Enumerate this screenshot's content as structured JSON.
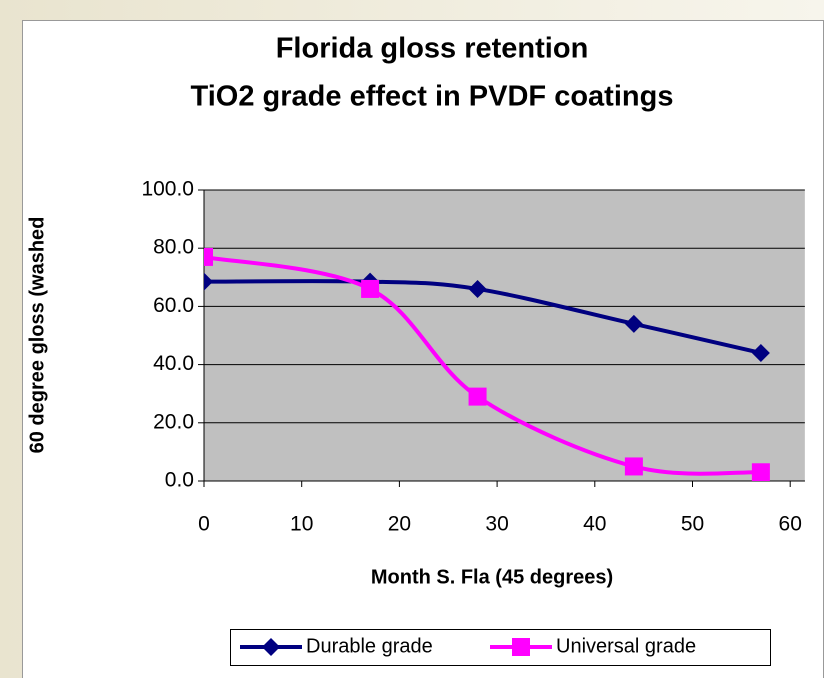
{
  "chart_data": {
    "type": "line",
    "title": [
      "Florida gloss retention",
      "TiO2 grade effect in PVDF coatings"
    ],
    "x_label": "Month S. Fla (45 degrees)",
    "y_label": "60 degree gloss (washed",
    "x": [
      0,
      17,
      28,
      44,
      57
    ],
    "series": [
      {
        "name": "Durable grade",
        "color": "#000080",
        "marker": "diamond",
        "values": [
          68.5,
          68.5,
          66,
          54,
          44
        ]
      },
      {
        "name": "Universal grade",
        "color": "#ff00ff",
        "marker": "square",
        "values": [
          77,
          66,
          29,
          5,
          3
        ]
      }
    ],
    "xlim": [
      0,
      61.5
    ],
    "xticks": [
      0,
      10,
      20,
      30,
      40,
      50,
      60
    ],
    "ylim": [
      0,
      100
    ],
    "yticks": [
      {
        "value": 0,
        "label": "0.0"
      },
      {
        "value": 20,
        "label": "20.0"
      },
      {
        "value": 40,
        "label": "40.0"
      },
      {
        "value": 60,
        "label": "60.0"
      },
      {
        "value": 80,
        "label": "80.0"
      },
      {
        "value": 100,
        "label": "100.0"
      }
    ],
    "grid": true,
    "plot_background": "#c0c0c0",
    "legend": "bottom"
  }
}
